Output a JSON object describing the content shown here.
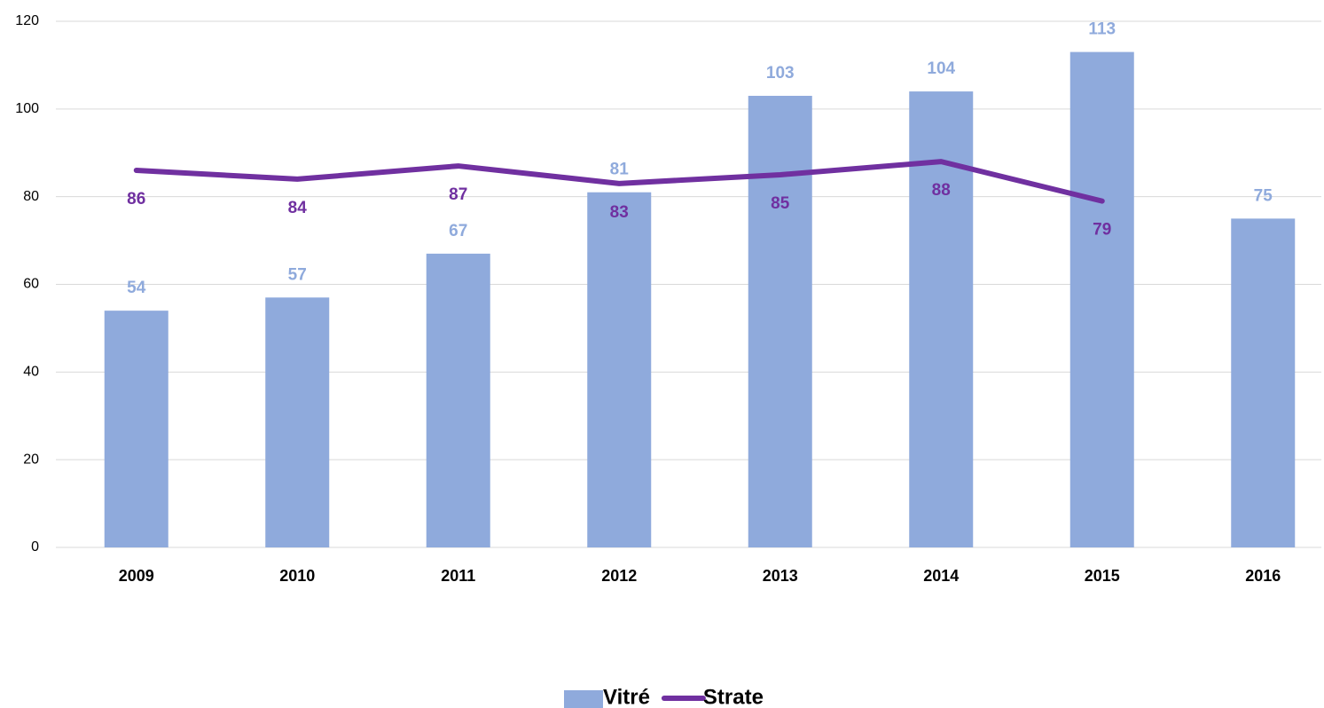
{
  "chart_data": {
    "type": "bar",
    "categories": [
      "2009",
      "2010",
      "2011",
      "2012",
      "2013",
      "2014",
      "2015",
      "2016"
    ],
    "series": [
      {
        "name": "Vitré",
        "type": "bar",
        "color": "#8faadc",
        "label_color": "#8faadc",
        "values": [
          54,
          57,
          67,
          81,
          103,
          104,
          113,
          75
        ]
      },
      {
        "name": "Strate",
        "type": "line",
        "color": "#7030a0",
        "label_color": "#7030a0",
        "values": [
          86,
          84,
          87,
          83,
          85,
          88,
          79,
          null
        ]
      }
    ],
    "ylim": [
      0,
      120
    ],
    "yticks": [
      0,
      20,
      40,
      60,
      80,
      100,
      120
    ],
    "grid": true,
    "legend": "bottom"
  }
}
